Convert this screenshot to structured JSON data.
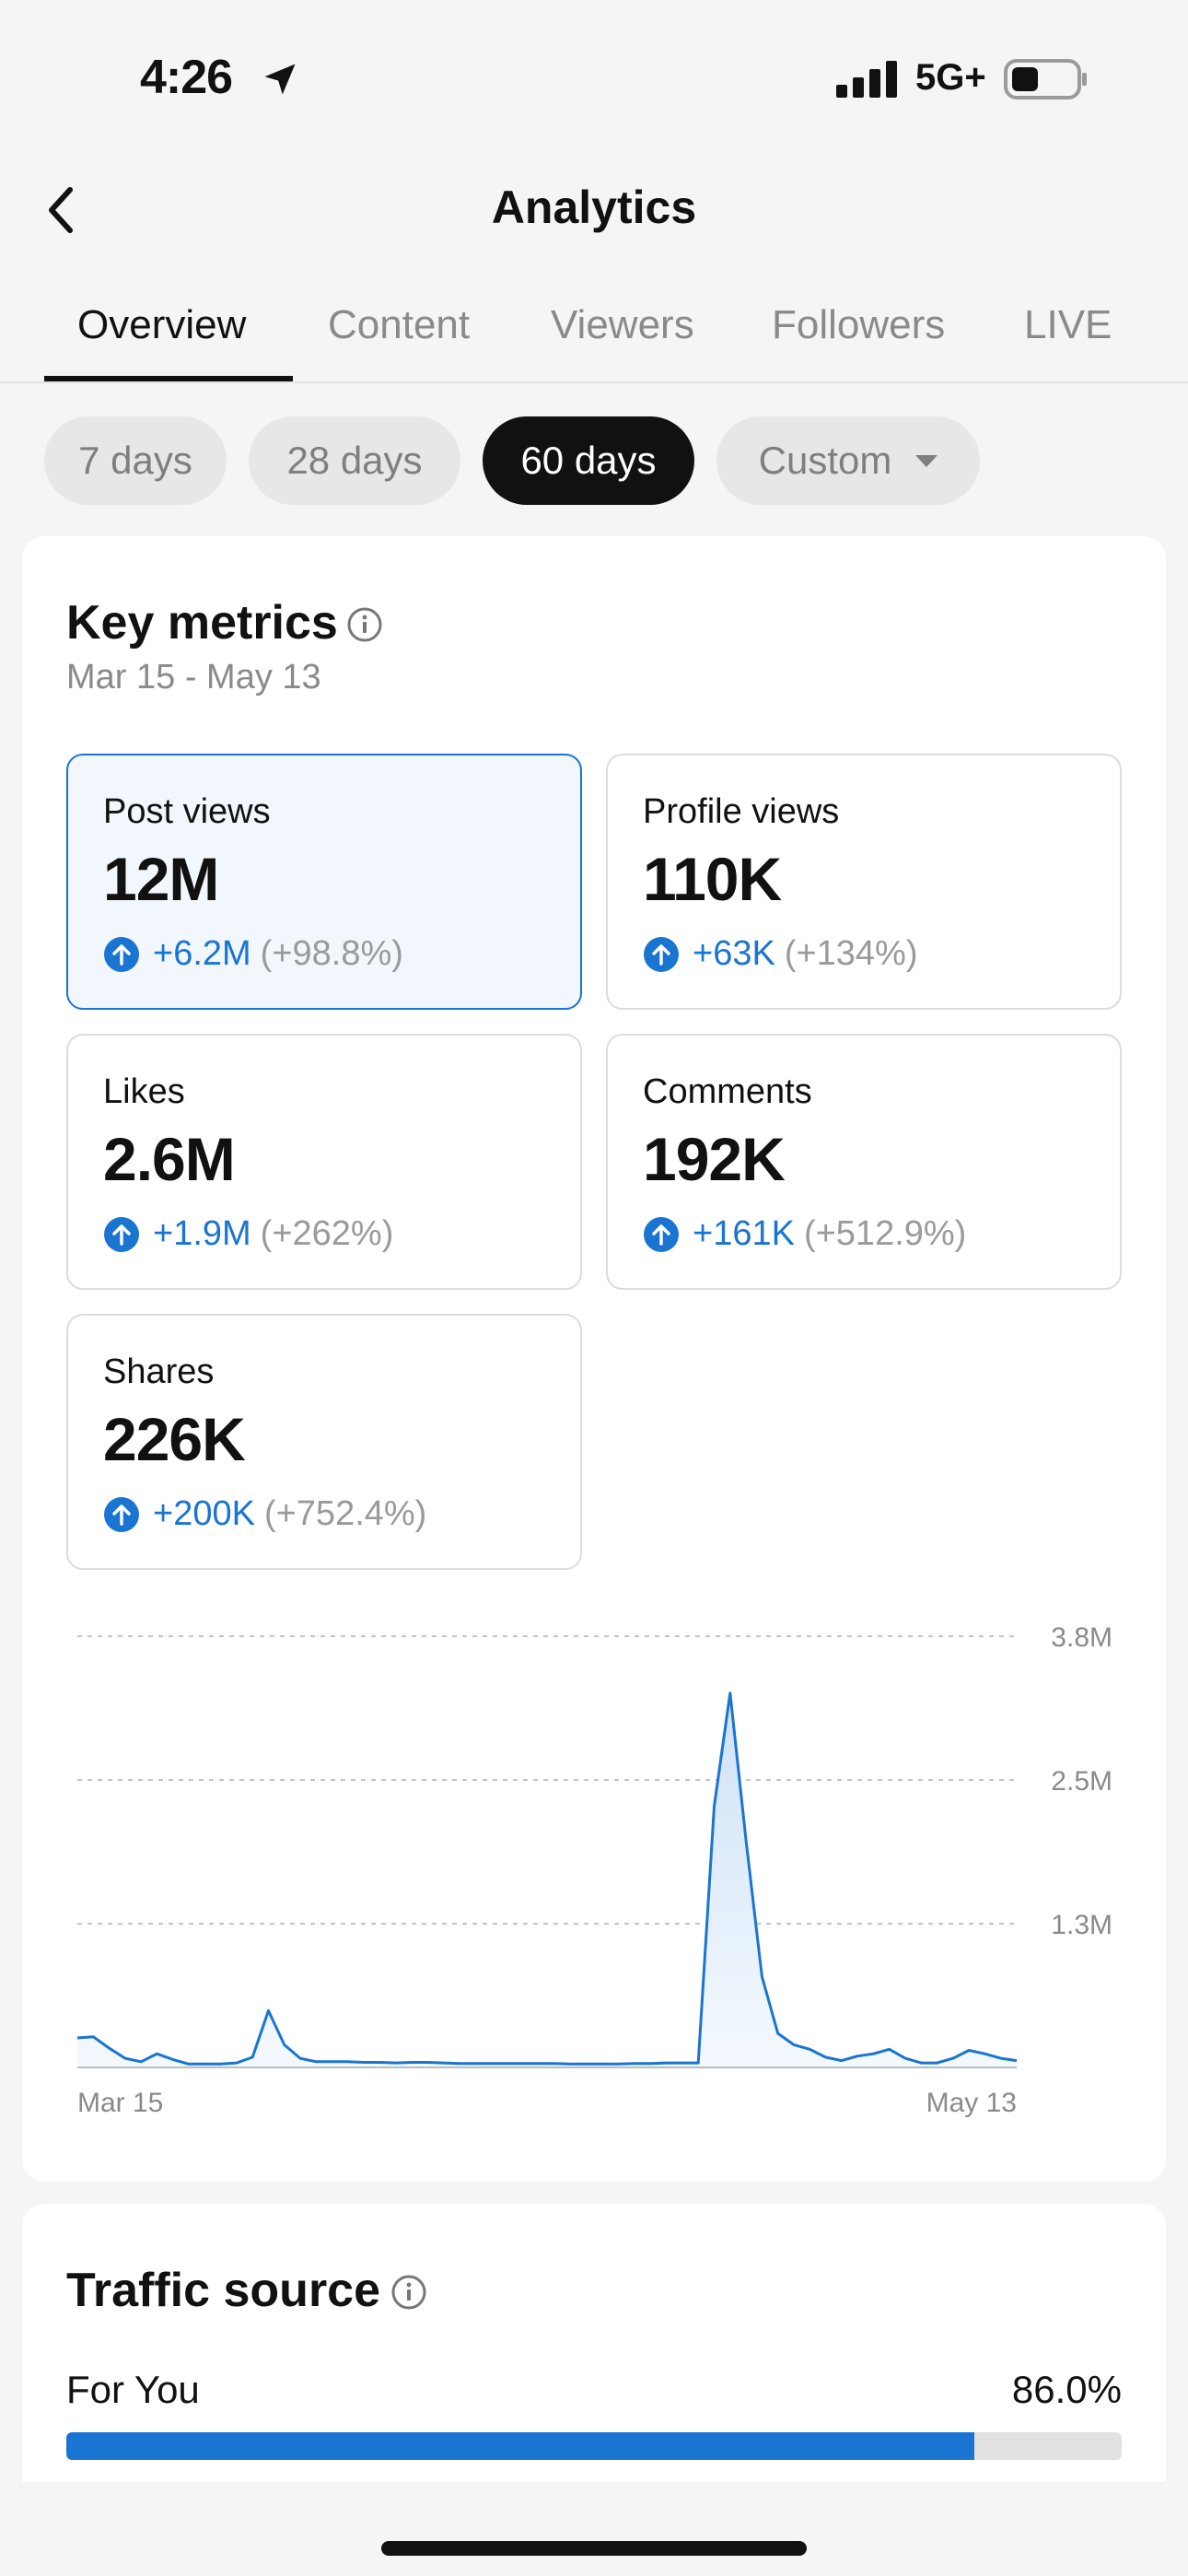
{
  "status_bar": {
    "time": "4:26",
    "network": "5G+"
  },
  "header": {
    "title": "Analytics"
  },
  "tabs": [
    {
      "label": "Overview",
      "active": true
    },
    {
      "label": "Content",
      "active": false
    },
    {
      "label": "Viewers",
      "active": false
    },
    {
      "label": "Followers",
      "active": false
    },
    {
      "label": "LIVE",
      "active": false
    }
  ],
  "periods": [
    {
      "label": "7 days",
      "active": false
    },
    {
      "label": "28 days",
      "active": false
    },
    {
      "label": "60 days",
      "active": true
    },
    {
      "label": "Custom",
      "active": false
    }
  ],
  "key_metrics": {
    "title": "Key metrics",
    "date_range": "Mar 15 - May 13",
    "tiles": [
      {
        "label": "Post views",
        "value": "12M",
        "delta": "+6.2M",
        "pct": "(+98.8%)",
        "selected": true
      },
      {
        "label": "Profile views",
        "value": "110K",
        "delta": "+63K",
        "pct": "(+134%)",
        "selected": false
      },
      {
        "label": "Likes",
        "value": "2.6M",
        "delta": "+1.9M",
        "pct": "(+262%)",
        "selected": false
      },
      {
        "label": "Comments",
        "value": "192K",
        "delta": "+161K",
        "pct": "(+512.9%)",
        "selected": false
      },
      {
        "label": "Shares",
        "value": "226K",
        "delta": "+200K",
        "pct": "(+752.4%)",
        "selected": false
      }
    ]
  },
  "chart_data": {
    "type": "area",
    "x_start_label": "Mar 15",
    "x_end_label": "May 13",
    "y_ticks": [
      {
        "value": 1266667,
        "label": "1.3M"
      },
      {
        "value": 2533333,
        "label": "2.5M"
      },
      {
        "value": 3800000,
        "label": "3.8M"
      }
    ],
    "ylim": [
      0,
      3800000
    ],
    "grid": true,
    "series": [
      {
        "values": [
          260000,
          270000,
          170000,
          80000,
          50000,
          120000,
          70000,
          30000,
          30000,
          30000,
          40000,
          90000,
          500000,
          200000,
          80000,
          50000,
          50000,
          50000,
          45000,
          45000,
          40000,
          45000,
          45000,
          40000,
          35000,
          35000,
          35000,
          35000,
          35000,
          35000,
          35000,
          30000,
          30000,
          30000,
          30000,
          35000,
          35000,
          40000,
          40000,
          40000,
          2300000,
          3300000,
          2000000,
          800000,
          300000,
          200000,
          160000,
          90000,
          60000,
          100000,
          120000,
          160000,
          80000,
          40000,
          40000,
          80000,
          150000,
          120000,
          80000,
          60000
        ]
      }
    ],
    "colors": {
      "line": "#1a74d2",
      "fill_top": "#cfe2f7",
      "fill_bottom": "#f4f9fe"
    }
  },
  "traffic_source": {
    "title": "Traffic source",
    "rows": [
      {
        "label": "For You",
        "value": "86.0%",
        "fraction": 0.86
      }
    ]
  },
  "colors": {
    "accent": "#1a74d2",
    "background": "#f5f5f5",
    "card": "#ffffff"
  }
}
